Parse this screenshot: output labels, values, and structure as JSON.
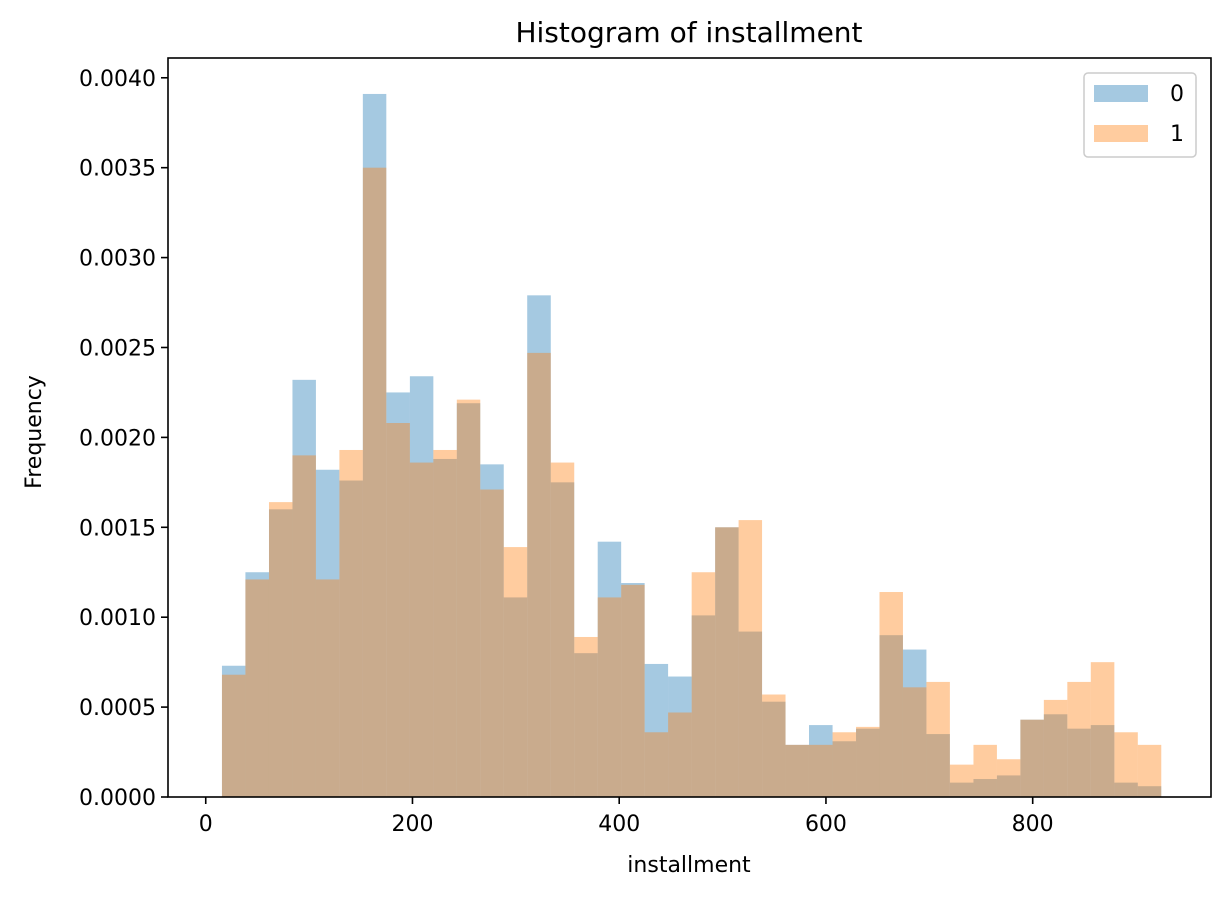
{
  "chart_data": {
    "type": "bar",
    "title": "Histogram of installment",
    "xlabel": "installment",
    "ylabel": "Frequency",
    "xlim": [
      -36.5,
      972.5
    ],
    "ylim": [
      0,
      0.00411
    ],
    "x_ticks": [
      0,
      200,
      400,
      600,
      800
    ],
    "y_ticks": [
      0.0,
      0.0005,
      0.001,
      0.0015,
      0.002,
      0.0025,
      0.003,
      0.0035,
      0.004
    ],
    "y_tick_format": 4,
    "bin_edges": [
      15.7,
      38.4,
      61.2,
      83.9,
      106.6,
      129.3,
      152.0,
      174.7,
      197.5,
      220.2,
      242.9,
      265.6,
      288.3,
      311.0,
      333.8,
      356.5,
      379.2,
      401.9,
      424.6,
      447.3,
      470.1,
      492.8,
      515.5,
      538.2,
      560.9,
      583.6,
      606.4,
      629.1,
      651.8,
      674.5,
      697.2,
      719.9,
      742.7,
      765.4,
      788.1,
      810.8,
      833.5,
      856.2,
      879.0,
      901.7,
      924.4
    ],
    "series": [
      {
        "name": "0",
        "color": "#1f77b4",
        "alpha": 0.4,
        "values": [
          0.00073,
          0.00125,
          0.0016,
          0.00232,
          0.00182,
          0.00176,
          0.00391,
          0.00225,
          0.00234,
          0.00188,
          0.00219,
          0.00185,
          0.00111,
          0.00279,
          0.00175,
          0.0008,
          0.00142,
          0.00119,
          0.00074,
          0.00067,
          0.00101,
          0.0015,
          0.00092,
          0.00053,
          0.00029,
          0.0004,
          0.00031,
          0.00038,
          0.0009,
          0.00082,
          0.00035,
          8e-05,
          0.0001,
          0.00012,
          0.00043,
          0.00046,
          0.00038,
          0.0004,
          8e-05,
          6e-05
        ]
      },
      {
        "name": "1",
        "color": "#ff7f0e",
        "alpha": 0.4,
        "values": [
          0.00068,
          0.00121,
          0.00164,
          0.0019,
          0.00121,
          0.00193,
          0.0035,
          0.00208,
          0.00186,
          0.00193,
          0.00221,
          0.00171,
          0.00139,
          0.00247,
          0.00186,
          0.00089,
          0.00111,
          0.00118,
          0.00036,
          0.00047,
          0.00125,
          0.0015,
          0.00154,
          0.00057,
          0.00029,
          0.00029,
          0.00036,
          0.00039,
          0.00114,
          0.00061,
          0.00064,
          0.00018,
          0.00029,
          0.00021,
          0.00043,
          0.00054,
          0.00064,
          0.00075,
          0.00036,
          0.00029
        ]
      }
    ],
    "legend": {
      "position": "top-right",
      "entries": [
        "0",
        "1"
      ]
    },
    "grid": false
  }
}
